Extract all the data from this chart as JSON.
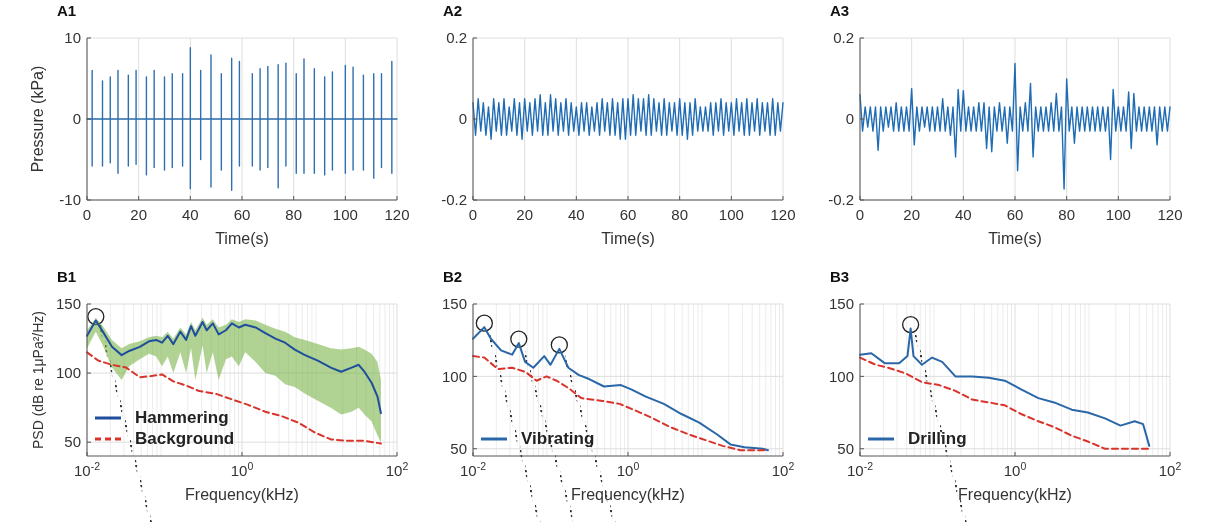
{
  "chart_data": [
    {
      "type": "line",
      "title": "A1",
      "xlabel": "Time(s)",
      "ylabel": "Pressure (kPa)",
      "xlim": [
        0,
        120
      ],
      "xticks": [
        0,
        20,
        40,
        60,
        80,
        100,
        120
      ],
      "ylim": [
        -10,
        10
      ],
      "yticks": [
        -10,
        0,
        10
      ],
      "grid": true,
      "series": [
        {
          "color": "#2e6fae",
          "x": [
            0,
            2,
            2,
            2,
            2,
            6,
            6,
            6,
            6,
            9,
            9,
            9,
            9,
            12,
            12,
            12,
            12,
            16,
            16,
            16,
            16,
            19,
            19,
            19,
            19,
            23,
            23,
            23,
            23,
            26,
            26,
            26,
            26,
            30,
            30,
            30,
            30,
            33,
            33,
            33,
            33,
            37,
            37,
            37,
            37,
            40,
            40,
            40,
            40,
            44,
            44,
            44,
            44,
            48,
            48,
            48,
            48,
            52,
            52,
            52,
            52,
            56,
            56,
            56,
            56,
            59,
            59,
            59,
            59,
            64,
            64,
            64,
            64,
            67,
            67,
            67,
            67,
            70,
            70,
            70,
            70,
            74,
            74,
            74,
            74,
            77,
            77,
            77,
            77,
            81,
            81,
            81,
            81,
            84,
            84,
            84,
            84,
            88,
            88,
            88,
            88,
            92,
            92,
            92,
            92,
            95,
            95,
            95,
            95,
            100,
            100,
            100,
            100,
            103,
            103,
            103,
            103,
            107,
            107,
            107,
            107,
            111,
            111,
            111,
            111,
            114,
            114,
            114,
            114,
            118,
            118,
            118,
            118,
            120
          ],
          "values": [
            0,
            0,
            6,
            -5.8,
            0,
            0,
            4.7,
            -5.8,
            0,
            0,
            5.2,
            -5.4,
            0,
            0,
            6,
            -6.7,
            0,
            0,
            5.4,
            -5.8,
            0,
            0,
            6,
            -5.6,
            0,
            0,
            5.2,
            -6.9,
            0,
            0,
            6,
            -6,
            0,
            0,
            5.2,
            -6.3,
            0,
            0,
            5.6,
            -6,
            0,
            0,
            5.6,
            -5.8,
            0,
            0,
            8.8,
            -8.6,
            0,
            0,
            6,
            -5,
            0,
            0,
            7.9,
            -8.4,
            0,
            0,
            5.6,
            -6.3,
            0,
            0,
            7.5,
            -8.8,
            0,
            0,
            7.1,
            -5.8,
            0,
            0,
            5.6,
            -5.8,
            0,
            0,
            6.2,
            -6.3,
            0,
            0,
            6.5,
            -6,
            0,
            0,
            6.7,
            -8.5,
            0,
            0,
            6.9,
            -5.8,
            0,
            0,
            5.6,
            -6.7,
            0,
            0,
            7.4,
            -6.7,
            0,
            0,
            6.2,
            -6.7,
            0,
            0,
            5.2,
            -6.9,
            0,
            0,
            5.8,
            -6.3,
            0,
            0,
            6.6,
            -6.7,
            0,
            0,
            6.4,
            -6.3,
            0,
            0,
            5.4,
            -6.3,
            0,
            0,
            5.6,
            -7.3,
            0,
            0,
            5.6,
            -6,
            0,
            0,
            7.1,
            -6.7,
            0,
            0
          ]
        }
      ]
    },
    {
      "type": "line",
      "title": "A2",
      "xlabel": "Time(s)",
      "xlim": [
        0,
        120
      ],
      "xticks": [
        0,
        20,
        40,
        60,
        80,
        100,
        120
      ],
      "ylim": [
        -0.2,
        0.2
      ],
      "yticks": [
        -0.2,
        0,
        0.2
      ],
      "grid": true,
      "series": [
        {
          "color": "#1f6cb5",
          "x": [
            0,
            1,
            2,
            3,
            4,
            5,
            6,
            7,
            8,
            9,
            10,
            11,
            12,
            13,
            14,
            15,
            16,
            17,
            18,
            19,
            20,
            21,
            22,
            23,
            24,
            25,
            26,
            27,
            28,
            29,
            30,
            31,
            32,
            33,
            34,
            35,
            36,
            37,
            38,
            39,
            40,
            41,
            42,
            43,
            44,
            45,
            46,
            47,
            48,
            49,
            50,
            51,
            52,
            53,
            54,
            55,
            56,
            57,
            58,
            59,
            60,
            61,
            62,
            63,
            64,
            65,
            66,
            67,
            68,
            69,
            70,
            71,
            72,
            73,
            74,
            75,
            76,
            77,
            78,
            79,
            80,
            81,
            82,
            83,
            84,
            85,
            86,
            87,
            88,
            89,
            90,
            91,
            92,
            93,
            94,
            95,
            96,
            97,
            98,
            99,
            100,
            101,
            102,
            103,
            104,
            105,
            106,
            107,
            108,
            109,
            110,
            111,
            112,
            113,
            114,
            115,
            116,
            117,
            118,
            119,
            120
          ],
          "values": [
            0.04,
            -0.04,
            0.05,
            -0.03,
            0.04,
            -0.04,
            0.03,
            -0.05,
            0.05,
            -0.03,
            0.04,
            -0.04,
            0.05,
            -0.04,
            0.03,
            -0.03,
            0.05,
            -0.04,
            0.04,
            -0.05,
            0.05,
            -0.03,
            0.04,
            -0.04,
            0.05,
            -0.03,
            0.06,
            -0.04,
            0.04,
            -0.04,
            0.06,
            -0.03,
            0.05,
            -0.04,
            0.04,
            -0.03,
            0.05,
            -0.04,
            0.04,
            -0.03,
            0.03,
            -0.04,
            0.04,
            -0.03,
            0.04,
            -0.04,
            0.03,
            -0.03,
            0.04,
            -0.04,
            0.05,
            -0.03,
            0.04,
            -0.04,
            0.05,
            -0.04,
            0.04,
            -0.05,
            0.05,
            -0.05,
            0.05,
            -0.04,
            0.06,
            -0.04,
            0.05,
            -0.03,
            0.05,
            -0.04,
            0.06,
            -0.04,
            0.05,
            -0.03,
            0.04,
            -0.04,
            0.05,
            -0.04,
            0.04,
            -0.03,
            0.04,
            -0.04,
            0.05,
            -0.04,
            0.04,
            -0.05,
            0.04,
            -0.04,
            0.05,
            -0.03,
            0.03,
            -0.03,
            0.03,
            -0.03,
            0.04,
            -0.04,
            0.04,
            -0.03,
            0.05,
            -0.04,
            0.04,
            -0.03,
            0.04,
            -0.04,
            0.05,
            -0.03,
            0.04,
            -0.04,
            0.05,
            -0.04,
            0.04,
            -0.03,
            0.05,
            -0.04,
            0.04,
            -0.03,
            0.04,
            -0.04,
            0.05,
            -0.04,
            0.04,
            -0.03,
            0.04
          ]
        }
      ]
    },
    {
      "type": "line",
      "title": "A3",
      "xlabel": "Time(s)",
      "xlim": [
        0,
        120
      ],
      "xticks": [
        0,
        20,
        40,
        60,
        80,
        100,
        120
      ],
      "ylim": [
        -0.2,
        0.2
      ],
      "yticks": [
        -0.2,
        0,
        0.2
      ],
      "grid": true,
      "series": [
        {
          "color": "#1f6cb5",
          "x": [
            0,
            1,
            2,
            3,
            4,
            5,
            6,
            7,
            8,
            9,
            10,
            11,
            12,
            13,
            14,
            15,
            16,
            17,
            18,
            19,
            20,
            21,
            22,
            23,
            24,
            25,
            26,
            27,
            28,
            29,
            30,
            31,
            32,
            33,
            34,
            35,
            36,
            37,
            38,
            39,
            40,
            41,
            42,
            43,
            44,
            45,
            46,
            47,
            48,
            49,
            50,
            51,
            52,
            53,
            54,
            55,
            56,
            57,
            58,
            59,
            60,
            61,
            62,
            63,
            64,
            65,
            66,
            67,
            68,
            69,
            70,
            71,
            72,
            73,
            74,
            75,
            76,
            77,
            78,
            79,
            80,
            81,
            82,
            83,
            84,
            85,
            86,
            87,
            88,
            89,
            90,
            91,
            92,
            93,
            94,
            95,
            96,
            97,
            98,
            99,
            100,
            101,
            102,
            103,
            104,
            105,
            106,
            107,
            108,
            109,
            110,
            111,
            112,
            113,
            114,
            115,
            116,
            117,
            118,
            119,
            120
          ],
          "values": [
            0.06,
            -0.03,
            0.03,
            -0.02,
            0.03,
            -0.03,
            0.03,
            -0.077,
            0.03,
            -0.03,
            0.03,
            -0.02,
            0.03,
            -0.03,
            0.04,
            -0.03,
            0.03,
            -0.03,
            0.03,
            -0.03,
            0.075,
            -0.064,
            0.03,
            -0.03,
            0.03,
            -0.02,
            0.03,
            -0.03,
            0.03,
            -0.03,
            0.03,
            -0.03,
            0.05,
            -0.03,
            0.03,
            -0.04,
            0.03,
            -0.094,
            0.073,
            -0.03,
            0.07,
            -0.03,
            0.03,
            -0.03,
            0.03,
            -0.03,
            0.04,
            -0.03,
            0.04,
            -0.073,
            0.03,
            -0.081,
            0.03,
            -0.03,
            0.04,
            -0.03,
            0.03,
            -0.06,
            0.03,
            -0.03,
            0.137,
            -0.128,
            0.03,
            -0.03,
            0.04,
            -0.03,
            0.088,
            -0.094,
            0.03,
            -0.03,
            0.03,
            -0.03,
            0.03,
            -0.03,
            0.04,
            -0.03,
            0.063,
            -0.03,
            0.03,
            -0.173,
            0.099,
            -0.03,
            0.03,
            -0.06,
            0.03,
            -0.03,
            0.03,
            -0.03,
            0.03,
            -0.03,
            0.03,
            -0.03,
            0.03,
            -0.03,
            0.03,
            -0.03,
            0.03,
            -0.1,
            0.073,
            -0.03,
            0.03,
            -0.03,
            0.03,
            -0.03,
            0.067,
            -0.073,
            0.063,
            -0.03,
            0.03,
            -0.03,
            0.03,
            -0.03,
            0.03,
            -0.03,
            0.03,
            -0.064,
            0.03,
            -0.03,
            0.03,
            -0.03,
            0.03
          ]
        }
      ]
    },
    {
      "type": "line",
      "title": "B1",
      "xlabel": "Frequency(kHz)",
      "ylabel": "PSD (dB re 1μPa²/Hz)",
      "log": "x",
      "xlim": [
        0.01,
        100
      ],
      "xticks": [
        {
          "value": 0.01,
          "label": "10$^{-2}$"
        },
        {
          "value": 1,
          "label": "10$^{0}$"
        },
        {
          "value": 100,
          "label": "10$^{2}$"
        }
      ],
      "ylim": [
        40,
        150
      ],
      "yticks": [
        50,
        100,
        150
      ],
      "grid": true,
      "legend": "bottom left",
      "series": [
        {
          "name": "Hammering",
          "color": "#1f4e9c",
          "x": [
            0.01,
            0.013,
            0.016,
            0.021,
            0.028,
            0.035,
            0.048,
            0.063,
            0.078,
            0.093,
            0.11,
            0.13,
            0.16,
            0.19,
            0.22,
            0.25,
            0.31,
            0.35,
            0.42,
            0.5,
            0.62,
            0.74,
            0.91,
            1.1,
            1.5,
            2,
            2.7,
            3.6,
            4.8,
            6.5,
            9.5,
            14,
            19,
            26,
            32,
            38,
            47,
            56,
            62
          ],
          "values": [
            127,
            138,
            130,
            119,
            113,
            116,
            119,
            123,
            124,
            122,
            127,
            121,
            130,
            124,
            134,
            127,
            137,
            131,
            136,
            128,
            131,
            136,
            133,
            135,
            133,
            129,
            125,
            122,
            117,
            113,
            109,
            104,
            101,
            104,
            106,
            101,
            93,
            83,
            71
          ],
          "upper": [
            131,
            140,
            134,
            124,
            118,
            121,
            123,
            126,
            127,
            126,
            130,
            125,
            133,
            128,
            137,
            131,
            140,
            135,
            139,
            133,
            135,
            139,
            137,
            139,
            138,
            135,
            132,
            130,
            126,
            124,
            121,
            118,
            117,
            118,
            119,
            117,
            114,
            108,
            95
          ],
          "lower": [
            118,
            130,
            120,
            104,
            95,
            105,
            110,
            114,
            112,
            105,
            112,
            100,
            115,
            100,
            118,
            95,
            120,
            100,
            115,
            95,
            110,
            112,
            105,
            115,
            108,
            100,
            98,
            92,
            90,
            85,
            80,
            75,
            70,
            72,
            75,
            70,
            65,
            55,
            50
          ]
        },
        {
          "name": "Background",
          "color": "#d9342b",
          "line_style": "dashed",
          "x": [
            0.01,
            0.014,
            0.021,
            0.032,
            0.048,
            0.071,
            0.093,
            0.13,
            0.19,
            0.28,
            0.46,
            0.74,
            1.2,
            2,
            3.2,
            5.4,
            8.7,
            14,
            23,
            38,
            62
          ],
          "values": [
            115,
            109,
            106,
            104,
            97,
            98,
            99,
            94,
            91,
            87,
            85,
            81,
            77,
            72,
            69,
            64,
            57,
            52,
            51,
            51,
            49
          ]
        }
      ]
    },
    {
      "type": "line",
      "title": "B2",
      "xlabel": "Frequency(kHz)",
      "log": "x",
      "xlim": [
        0.01,
        100
      ],
      "xticks": [
        {
          "value": 0.01,
          "label": "10$^{-2}$"
        },
        {
          "value": 1,
          "label": "10$^{0}$"
        },
        {
          "value": 100,
          "label": "10$^{2}$"
        }
      ],
      "ylim": [
        45,
        150
      ],
      "yticks": [
        50,
        100,
        150
      ],
      "grid": true,
      "legend": "bottom left",
      "series": [
        {
          "name": "Vibrating",
          "color": "#2a67a8",
          "x": [
            0.01,
            0.014,
            0.017,
            0.023,
            0.032,
            0.039,
            0.047,
            0.06,
            0.083,
            0.1,
            0.13,
            0.17,
            0.23,
            0.32,
            0.49,
            0.81,
            1.1,
            1.7,
            2.9,
            4.9,
            8.3,
            14,
            21,
            32,
            55,
            64
          ],
          "values": [
            126,
            134,
            126,
            118,
            115,
            123,
            110,
            106,
            114,
            108,
            119,
            106,
            101,
            98,
            93,
            94,
            91,
            86,
            81,
            74,
            68,
            60,
            53,
            51,
            50,
            49
          ]
        },
        {
          "color": "#d9342b",
          "line_style": "dashed",
          "x": [
            0.01,
            0.014,
            0.021,
            0.032,
            0.048,
            0.066,
            0.089,
            0.12,
            0.17,
            0.25,
            0.47,
            0.78,
            1.3,
            2.1,
            3.5,
            6,
            10,
            16.6,
            28,
            45,
            64
          ],
          "values": [
            114,
            113,
            105,
            106,
            103,
            97,
            100,
            97,
            92,
            85,
            83,
            81,
            76,
            71,
            65,
            60,
            56,
            52,
            49,
            49,
            49
          ]
        }
      ]
    },
    {
      "type": "line",
      "title": "B3",
      "xlabel": "Frequency(kHz)",
      "log": "x",
      "xlim": [
        0.01,
        100
      ],
      "xticks": [
        {
          "value": 0.01,
          "label": "10$^{-2}$"
        },
        {
          "value": 1,
          "label": "10$^{0}$"
        },
        {
          "value": 100,
          "label": "10$^{2}$"
        }
      ],
      "ylim": [
        45,
        150
      ],
      "yticks": [
        50,
        100,
        150
      ],
      "grid": true,
      "legend": "bottom left",
      "series": [
        {
          "name": "Drilling",
          "color": "#2a67a8",
          "x": [
            0.01,
            0.014,
            0.021,
            0.032,
            0.041,
            0.045,
            0.049,
            0.063,
            0.085,
            0.115,
            0.17,
            0.28,
            0.46,
            0.74,
            1.2,
            2,
            3.2,
            5.4,
            8.7,
            14.5,
            23,
            35,
            45,
            54
          ],
          "values": [
            115,
            116,
            109,
            109,
            114,
            133,
            114,
            108,
            113,
            110,
            100,
            100,
            99,
            97,
            91,
            85,
            82,
            77,
            75,
            71,
            66,
            69,
            67,
            52
          ]
        },
        {
          "color": "#d9342b",
          "line_style": "dashed",
          "x": [
            0.01,
            0.016,
            0.023,
            0.039,
            0.063,
            0.105,
            0.17,
            0.28,
            0.46,
            0.74,
            1.2,
            2,
            3.2,
            5.4,
            8.7,
            14.5,
            23,
            38,
            54
          ],
          "values": [
            113,
            108,
            106,
            102,
            96,
            94,
            90,
            84,
            82,
            80,
            74,
            69,
            65,
            59,
            55,
            50,
            50,
            50,
            50
          ]
        }
      ]
    }
  ]
}
